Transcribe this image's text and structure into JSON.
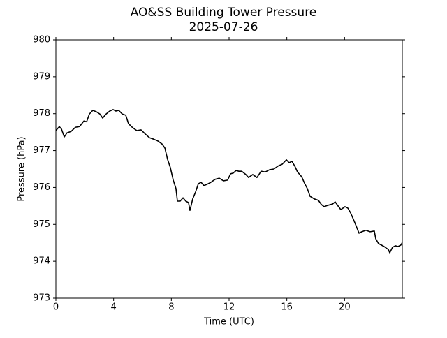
{
  "chart_data": {
    "type": "line",
    "title": "AO&SS Building Tower Pressure",
    "subtitle": "2025-07-26",
    "xlabel": "Time (UTC)",
    "ylabel": "Pressure (hPa)",
    "xlim": [
      0,
      24
    ],
    "xticks": [
      0,
      4,
      8,
      12,
      16,
      20
    ],
    "ylim": [
      973,
      980
    ],
    "yticks": [
      973,
      974,
      975,
      976,
      977,
      978,
      979,
      980
    ],
    "color": "#000000",
    "x": [
      0,
      0.24,
      0.39,
      0.58,
      0.77,
      1.06,
      1.35,
      1.64,
      1.94,
      2.13,
      2.32,
      2.56,
      2.81,
      3.05,
      3.24,
      3.48,
      3.73,
      3.97,
      4.16,
      4.35,
      4.6,
      4.84,
      5.03,
      5.32,
      5.61,
      5.9,
      6.19,
      6.48,
      6.77,
      7.06,
      7.35,
      7.55,
      7.74,
      7.93,
      8.13,
      8.32,
      8.42,
      8.61,
      8.81,
      9.0,
      9.19,
      9.29,
      9.48,
      9.68,
      9.87,
      10.06,
      10.26,
      10.55,
      10.74,
      11.03,
      11.32,
      11.61,
      11.9,
      12.1,
      12.29,
      12.48,
      12.68,
      12.87,
      13.16,
      13.35,
      13.64,
      13.93,
      14.22,
      14.51,
      14.8,
      15.1,
      15.39,
      15.68,
      15.97,
      16.16,
      16.35,
      16.55,
      16.74,
      17.03,
      17.22,
      17.42,
      17.61,
      17.9,
      18.19,
      18.39,
      18.58,
      18.87,
      19.16,
      19.35,
      19.55,
      19.74,
      20.03,
      20.23,
      20.42,
      20.61,
      20.81,
      21.0,
      21.19,
      21.48,
      21.77,
      22.06,
      22.16,
      22.35,
      22.55,
      22.74,
      23.03,
      23.13,
      23.32,
      23.52,
      23.71,
      23.9,
      24.0
    ],
    "series": [
      {
        "name": "Pressure",
        "color": "#000000",
        "values": [
          977.54,
          977.65,
          977.58,
          977.37,
          977.48,
          977.52,
          977.63,
          977.65,
          977.8,
          977.78,
          977.99,
          978.09,
          978.05,
          977.99,
          977.88,
          977.99,
          978.07,
          978.11,
          978.07,
          978.09,
          977.99,
          977.96,
          977.73,
          977.62,
          977.54,
          977.56,
          977.45,
          977.35,
          977.31,
          977.26,
          977.18,
          977.07,
          976.76,
          976.54,
          976.2,
          975.97,
          975.63,
          975.63,
          975.72,
          975.63,
          975.59,
          975.38,
          975.69,
          975.88,
          976.1,
          976.14,
          976.05,
          976.1,
          976.14,
          976.22,
          976.25,
          976.18,
          976.2,
          976.37,
          976.39,
          976.46,
          976.44,
          976.44,
          976.35,
          976.27,
          976.35,
          976.27,
          976.44,
          976.42,
          976.48,
          976.5,
          976.58,
          976.63,
          976.75,
          976.67,
          976.71,
          976.58,
          976.42,
          976.29,
          976.12,
          975.97,
          975.76,
          975.69,
          975.65,
          975.54,
          975.48,
          975.52,
          975.55,
          975.61,
          975.5,
          975.4,
          975.48,
          975.44,
          975.31,
          975.14,
          974.95,
          974.76,
          974.8,
          974.84,
          974.8,
          974.82,
          974.61,
          974.48,
          974.44,
          974.4,
          974.32,
          974.23,
          974.38,
          974.42,
          974.4,
          974.44,
          974.51
        ]
      }
    ]
  }
}
